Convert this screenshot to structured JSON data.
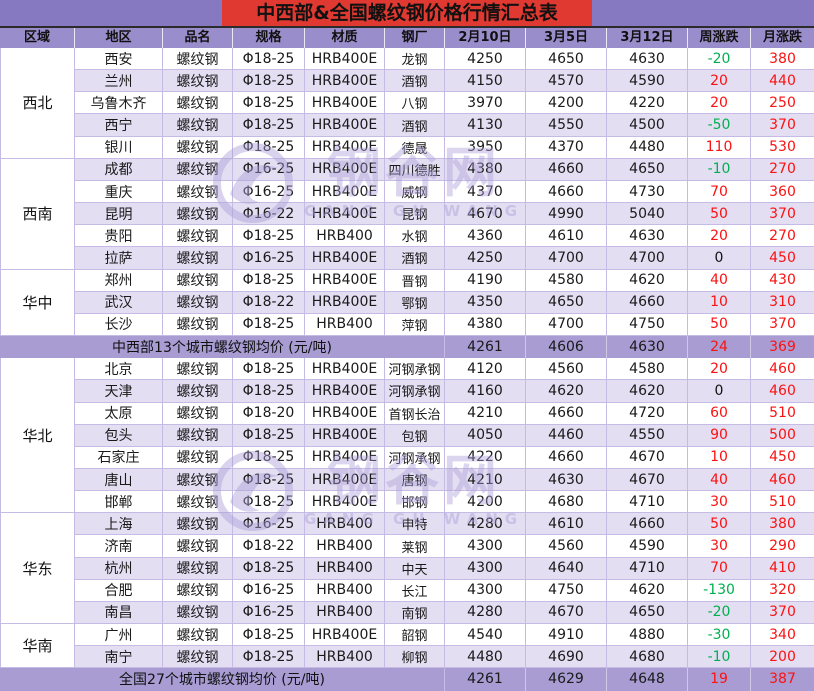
{
  "title": "中西部&全国螺纹钢价格行情汇总表",
  "columns": [
    "区域",
    "地区",
    "品名",
    "规格",
    "材质",
    "钢厂",
    "2月10日",
    "3月5日",
    "3月12日",
    "周涨跌",
    "月涨跌"
  ],
  "watermark": {
    "cn": "钢谷网",
    "en": "GANG GU WANG"
  },
  "colors": {
    "titlebar": "#8679C2",
    "titlebox": "#E03931",
    "header": "#9A8DCB",
    "summary": "#A89CD3",
    "band": "#E3DEF1",
    "border": "#C6BBE5",
    "red": "#FB1212",
    "green": "#00B050"
  },
  "sections": [
    {
      "type": "region",
      "name": "西北",
      "rows": [
        [
          "西安",
          "螺纹钢",
          "Φ18-25",
          "HRB400E",
          "龙钢",
          "4250",
          "4650",
          "4630",
          "-20",
          "380"
        ],
        [
          "兰州",
          "螺纹钢",
          "Φ18-25",
          "HRB400E",
          "酒钢",
          "4150",
          "4570",
          "4590",
          "20",
          "440"
        ],
        [
          "乌鲁木齐",
          "螺纹钢",
          "Φ18-25",
          "HRB400E",
          "八钢",
          "3970",
          "4200",
          "4220",
          "20",
          "250"
        ],
        [
          "西宁",
          "螺纹钢",
          "Φ18-25",
          "HRB400E",
          "酒钢",
          "4130",
          "4550",
          "4500",
          "-50",
          "370"
        ],
        [
          "银川",
          "螺纹钢",
          "Φ18-25",
          "HRB400E",
          "德晟",
          "3950",
          "4370",
          "4480",
          "110",
          "530"
        ]
      ]
    },
    {
      "type": "region",
      "name": "西南",
      "rows": [
        [
          "成都",
          "螺纹钢",
          "Φ16-25",
          "HRB400E",
          "四川德胜",
          "4380",
          "4660",
          "4650",
          "-10",
          "270"
        ],
        [
          "重庆",
          "螺纹钢",
          "Φ16-25",
          "HRB400E",
          "威钢",
          "4370",
          "4660",
          "4730",
          "70",
          "360"
        ],
        [
          "昆明",
          "螺纹钢",
          "Φ16-22",
          "HRB400E",
          "昆钢",
          "4670",
          "4990",
          "5040",
          "50",
          "370"
        ],
        [
          "贵阳",
          "螺纹钢",
          "Φ18-25",
          "HRB400",
          "水钢",
          "4360",
          "4610",
          "4630",
          "20",
          "270"
        ],
        [
          "拉萨",
          "螺纹钢",
          "Φ16-25",
          "HRB400E",
          "酒钢",
          "4250",
          "4700",
          "4700",
          "0",
          "450"
        ]
      ]
    },
    {
      "type": "region",
      "name": "华中",
      "rows": [
        [
          "郑州",
          "螺纹钢",
          "Φ18-25",
          "HRB400E",
          "晋钢",
          "4190",
          "4580",
          "4620",
          "40",
          "430"
        ],
        [
          "武汉",
          "螺纹钢",
          "Φ18-22",
          "HRB400E",
          "鄂钢",
          "4350",
          "4650",
          "4660",
          "10",
          "310"
        ],
        [
          "长沙",
          "螺纹钢",
          "Φ18-25",
          "HRB400",
          "萍钢",
          "4380",
          "4700",
          "4750",
          "50",
          "370"
        ]
      ]
    },
    {
      "type": "summary",
      "label": "中西部13个城市螺纹钢均价 (元/吨)",
      "values": [
        "4261",
        "4606",
        "4630",
        "24",
        "369"
      ]
    },
    {
      "type": "region",
      "name": "华北",
      "rows": [
        [
          "北京",
          "螺纹钢",
          "Φ18-25",
          "HRB400E",
          "河钢承钢",
          "4120",
          "4560",
          "4580",
          "20",
          "460"
        ],
        [
          "天津",
          "螺纹钢",
          "Φ18-25",
          "HRB400E",
          "河钢承钢",
          "4160",
          "4620",
          "4620",
          "0",
          "460"
        ],
        [
          "太原",
          "螺纹钢",
          "Φ18-20",
          "HRB400E",
          "首钢长治",
          "4210",
          "4660",
          "4720",
          "60",
          "510"
        ],
        [
          "包头",
          "螺纹钢",
          "Φ18-25",
          "HRB400E",
          "包钢",
          "4050",
          "4460",
          "4550",
          "90",
          "500"
        ],
        [
          "石家庄",
          "螺纹钢",
          "Φ18-25",
          "HRB400E",
          "河钢承钢",
          "4220",
          "4660",
          "4670",
          "10",
          "450"
        ],
        [
          "唐山",
          "螺纹钢",
          "Φ18-25",
          "HRB400E",
          "唐钢",
          "4210",
          "4630",
          "4670",
          "40",
          "460"
        ],
        [
          "邯郸",
          "螺纹钢",
          "Φ18-25",
          "HRB400E",
          "邯钢",
          "4200",
          "4680",
          "4710",
          "30",
          "510"
        ]
      ]
    },
    {
      "type": "region",
      "name": "华东",
      "rows": [
        [
          "上海",
          "螺纹钢",
          "Φ16-25",
          "HRB400",
          "申特",
          "4280",
          "4610",
          "4660",
          "50",
          "380"
        ],
        [
          "济南",
          "螺纹钢",
          "Φ18-22",
          "HRB400",
          "莱钢",
          "4300",
          "4560",
          "4590",
          "30",
          "290"
        ],
        [
          "杭州",
          "螺纹钢",
          "Φ18-25",
          "HRB400",
          "中天",
          "4300",
          "4640",
          "4710",
          "70",
          "410"
        ],
        [
          "合肥",
          "螺纹钢",
          "Φ16-25",
          "HRB400",
          "长江",
          "4300",
          "4750",
          "4620",
          "-130",
          "320"
        ],
        [
          "南昌",
          "螺纹钢",
          "Φ16-25",
          "HRB400",
          "南钢",
          "4280",
          "4670",
          "4650",
          "-20",
          "370"
        ]
      ]
    },
    {
      "type": "region",
      "name": "华南",
      "rows": [
        [
          "广州",
          "螺纹钢",
          "Φ18-25",
          "HRB400E",
          "韶钢",
          "4540",
          "4910",
          "4880",
          "-30",
          "340"
        ],
        [
          "南宁",
          "螺纹钢",
          "Φ18-25",
          "HRB400",
          "柳钢",
          "4480",
          "4690",
          "4680",
          "-10",
          "200"
        ]
      ]
    },
    {
      "type": "summary",
      "label": "全国27个城市螺纹钢均价 (元/吨)",
      "values": [
        "4261",
        "4629",
        "4648",
        "19",
        "387"
      ]
    }
  ]
}
